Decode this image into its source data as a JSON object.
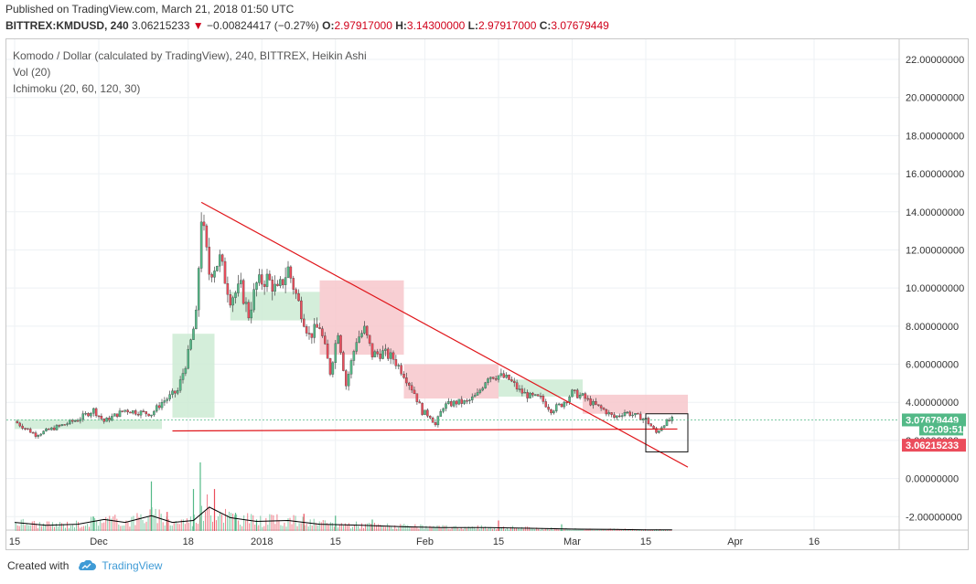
{
  "header": {
    "published": "Published on TradingView.com, March 21, 2018 01:50 UTC",
    "symbol": "BITTREX:KMDUSD, 240",
    "last": "3.06215233",
    "down_arrow": "▼",
    "change": "−0.00824417 (−0.27%)",
    "o_label": "O:",
    "o_value": "2.97917000",
    "h_label": "H:",
    "h_value": "3.14300000",
    "l_label": "L:",
    "l_value": "2.97917000",
    "c_label": "C:",
    "c_value": "3.07679449"
  },
  "legend": {
    "title": "Komodo / Dollar (calculated by TradingView), 240, BITTREX, Heikin Ashi",
    "vol": "Vol (20)",
    "ichimoku": "Ichimoku (20, 60, 120, 30)"
  },
  "colors": {
    "up": "#53b987",
    "down": "#eb4d5c",
    "line": "#e0161b",
    "grid": "#eef1f4",
    "cloud_green": "#cdebd4",
    "cloud_red": "#f7c7cb",
    "vol_ma": "#000000",
    "badge_green": "#53b987",
    "badge_red": "#eb4d5c"
  },
  "footer": {
    "created": "Created with",
    "brand": "TradingView",
    "logo": "tradingview-cloud-icon"
  },
  "chart_data": {
    "type": "candlestick",
    "title": "Komodo / Dollar (calculated by TradingView), 240, BITTREX, Heikin Ashi",
    "y_ticks": [
      22,
      20,
      18,
      16,
      14,
      12,
      10,
      8,
      6,
      4,
      2,
      0,
      -2
    ],
    "y_tick_labels": [
      "22.00000000",
      "20.00000000",
      "18.00000000",
      "16.00000000",
      "14.00000000",
      "12.00000000",
      "10.00000000",
      "8.00000000",
      "6.00000000",
      "4.00000000",
      "2.00000000",
      "0.00000000",
      "-2.00000000"
    ],
    "ylim": [
      -3.2,
      23.0
    ],
    "x_ticks": [
      {
        "label": "15",
        "day": 14
      },
      {
        "label": "Dec",
        "day": 30
      },
      {
        "label": "18",
        "day": 47
      },
      {
        "label": "2018",
        "day": 61
      },
      {
        "label": "15",
        "day": 75
      },
      {
        "label": "Feb",
        "day": 92
      },
      {
        "label": "15",
        "day": 106
      },
      {
        "label": "Mar",
        "day": 120
      },
      {
        "label": "15",
        "day": 134
      },
      {
        "label": "Apr",
        "day": 151
      },
      {
        "label": "16",
        "day": 166
      }
    ],
    "xlim": [
      14,
      182
    ],
    "price_path": [
      [
        14,
        3.0
      ],
      [
        18,
        2.3
      ],
      [
        22,
        2.7
      ],
      [
        26,
        3.1
      ],
      [
        29,
        3.6
      ],
      [
        31,
        3.0
      ],
      [
        33,
        3.3
      ],
      [
        35,
        3.6
      ],
      [
        37,
        3.5
      ],
      [
        40,
        3.4
      ],
      [
        42,
        4.0
      ],
      [
        45,
        4.6
      ],
      [
        47,
        6.5
      ],
      [
        48.5,
        8.5
      ],
      [
        49.5,
        13.8
      ],
      [
        51,
        10.8
      ],
      [
        53,
        11.5
      ],
      [
        55,
        9.5
      ],
      [
        57,
        10.0
      ],
      [
        58.5,
        8.6
      ],
      [
        60,
        10.2
      ],
      [
        62,
        10.5
      ],
      [
        64,
        9.8
      ],
      [
        66,
        11.0
      ],
      [
        68,
        9.2
      ],
      [
        70,
        7.5
      ],
      [
        72,
        8.0
      ],
      [
        74,
        5.6
      ],
      [
        75.5,
        7.8
      ],
      [
        77,
        4.9
      ],
      [
        79,
        7.3
      ],
      [
        80.5,
        7.8
      ],
      [
        82,
        6.5
      ],
      [
        84,
        6.6
      ],
      [
        86,
        6.3
      ],
      [
        88,
        5.5
      ],
      [
        90,
        4.5
      ],
      [
        91.5,
        3.5
      ],
      [
        93,
        3.3
      ],
      [
        94,
        2.8
      ],
      [
        95.5,
        3.8
      ],
      [
        98,
        4.0
      ],
      [
        100,
        4.0
      ],
      [
        102,
        4.4
      ],
      [
        104,
        5.4
      ],
      [
        106,
        5.4
      ],
      [
        108,
        5.2
      ],
      [
        110,
        4.6
      ],
      [
        112,
        4.3
      ],
      [
        114,
        4.2
      ],
      [
        116,
        3.6
      ],
      [
        118,
        3.9
      ],
      [
        120,
        4.5
      ],
      [
        122,
        4.3
      ],
      [
        124,
        3.9
      ],
      [
        126,
        3.6
      ],
      [
        128,
        3.2
      ],
      [
        130,
        3.5
      ],
      [
        132,
        3.3
      ],
      [
        134,
        3.1
      ],
      [
        136,
        2.4
      ],
      [
        137.5,
        2.9
      ],
      [
        139,
        3.1
      ]
    ],
    "volume_path": [
      [
        14,
        0.45
      ],
      [
        20,
        0.3
      ],
      [
        26,
        0.35
      ],
      [
        31,
        0.6
      ],
      [
        35,
        0.45
      ],
      [
        40,
        0.8
      ],
      [
        44,
        0.45
      ],
      [
        48,
        0.55
      ],
      [
        51,
        1.25
      ],
      [
        55,
        0.7
      ],
      [
        60,
        0.5
      ],
      [
        66,
        0.55
      ],
      [
        72,
        0.35
      ],
      [
        80,
        0.3
      ],
      [
        88,
        0.22
      ],
      [
        95,
        0.18
      ],
      [
        104,
        0.18
      ],
      [
        112,
        0.14
      ],
      [
        120,
        0.1
      ],
      [
        128,
        0.08
      ],
      [
        134,
        0.06
      ],
      [
        139,
        0.06
      ]
    ],
    "volume_spikes": [
      {
        "day": 29,
        "value": 0.75
      },
      {
        "day": 40,
        "value": 2.6
      },
      {
        "day": 43,
        "value": 1.0
      },
      {
        "day": 48,
        "value": 2.2
      },
      {
        "day": 49.3,
        "value": 3.6
      },
      {
        "day": 52,
        "value": 2.2
      },
      {
        "day": 56,
        "value": 0.95
      },
      {
        "day": 60,
        "value": 0.6
      },
      {
        "day": 69,
        "value": 0.9
      },
      {
        "day": 75,
        "value": 0.8
      },
      {
        "day": 82,
        "value": 0.6
      },
      {
        "day": 106,
        "value": 0.55
      },
      {
        "day": 118,
        "value": 0.35
      }
    ],
    "cloud_spans": [
      {
        "start": 14,
        "end": 42,
        "top": 3.1,
        "bottom": 2.6,
        "color": "green"
      },
      {
        "start": 44,
        "end": 52,
        "top": 7.6,
        "bottom": 3.2,
        "color": "green"
      },
      {
        "start": 55,
        "end": 72,
        "top": 9.8,
        "bottom": 8.3,
        "color": "green"
      },
      {
        "start": 72,
        "end": 88,
        "top": 10.4,
        "bottom": 6.5,
        "color": "red"
      },
      {
        "start": 88,
        "end": 106,
        "top": 6.0,
        "bottom": 4.2,
        "color": "red"
      },
      {
        "start": 106,
        "end": 122,
        "top": 5.2,
        "bottom": 4.3,
        "color": "green"
      },
      {
        "start": 122,
        "end": 142,
        "top": 4.4,
        "bottom": 3.4,
        "color": "red"
      }
    ],
    "trendlines": [
      {
        "x1": 49.5,
        "y1": 14.5,
        "x2": 142,
        "y2": 0.6
      },
      {
        "x1": 44,
        "y1": 2.5,
        "x2": 140,
        "y2": 2.6
      }
    ],
    "box": {
      "x1": 134,
      "y1": 3.4,
      "x2": 142,
      "y2": 1.4
    },
    "current_price_line": 3.07679449,
    "badges": [
      {
        "label": "3.07679449",
        "value": 3.07679449,
        "color": "green"
      },
      {
        "label": "02:09:51",
        "value": 2.6,
        "color": "green"
      },
      {
        "label": "3.06215233",
        "value": 1.75,
        "color": "red"
      }
    ]
  }
}
